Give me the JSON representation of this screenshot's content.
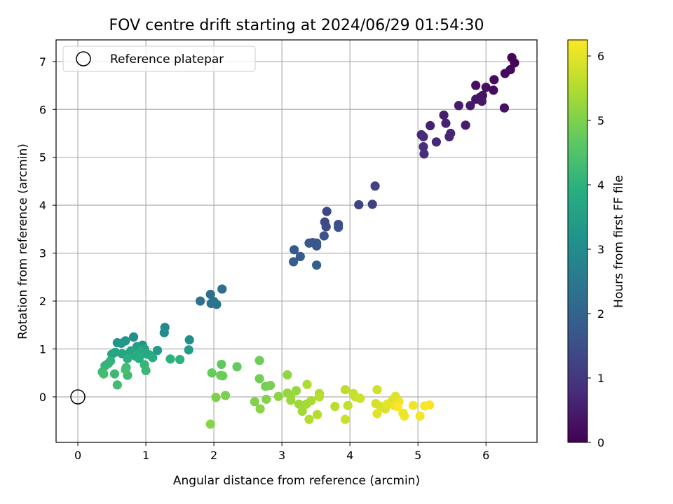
{
  "chart_data": {
    "type": "scatter",
    "title": "FOV centre drift starting at 2024/06/29 01:54:30",
    "xlabel": "Angular distance from reference (arcmin)",
    "ylabel": "Rotation from reference (arcmin)",
    "xlim": [
      -0.32,
      6.75
    ],
    "ylim": [
      -0.95,
      7.45
    ],
    "xticks": [
      0,
      1,
      2,
      3,
      4,
      5,
      6
    ],
    "yticks": [
      0,
      1,
      2,
      3,
      4,
      5,
      6,
      7
    ],
    "grid": true,
    "legend": {
      "placement": "upper-left",
      "entries": [
        "Reference platepar"
      ]
    },
    "colorbar": {
      "label": "Hours from first FF file",
      "colormap": "viridis",
      "range": [
        0,
        6.25
      ],
      "ticks": [
        0,
        1,
        2,
        3,
        4,
        5,
        6
      ]
    },
    "reference_point": {
      "x": 0,
      "y": 0
    },
    "series": [
      {
        "columns": [
          "x_arcmin",
          "y_arcmin",
          "hours"
        ],
        "points": [
          [
            6.38,
            7.08,
            0.05
          ],
          [
            6.42,
            6.97,
            0.08
          ],
          [
            6.36,
            6.83,
            0.11
          ],
          [
            6.28,
            6.75,
            0.14
          ],
          [
            6.12,
            6.62,
            0.17
          ],
          [
            6.11,
            6.4,
            0.2
          ],
          [
            6.0,
            6.46,
            0.23
          ],
          [
            5.85,
            6.5,
            0.26
          ],
          [
            6.27,
            6.03,
            0.29
          ],
          [
            5.95,
            6.29,
            0.32
          ],
          [
            5.91,
            6.25,
            0.35
          ],
          [
            5.85,
            6.21,
            0.38
          ],
          [
            5.94,
            6.17,
            0.41
          ],
          [
            5.77,
            6.08,
            0.45
          ],
          [
            5.6,
            6.08,
            0.48
          ],
          [
            5.7,
            5.67,
            0.51
          ],
          [
            5.38,
            5.88,
            0.55
          ],
          [
            5.41,
            5.71,
            0.58
          ],
          [
            5.18,
            5.66,
            0.61
          ],
          [
            5.48,
            5.5,
            0.64
          ],
          [
            5.46,
            5.43,
            0.67
          ],
          [
            5.27,
            5.32,
            0.7
          ],
          [
            5.05,
            5.47,
            0.73
          ],
          [
            5.08,
            5.43,
            0.76
          ],
          [
            5.08,
            5.22,
            0.79
          ],
          [
            5.09,
            5.07,
            0.82
          ],
          [
            4.37,
            4.4,
            1.2
          ],
          [
            4.33,
            4.02,
            1.23
          ],
          [
            4.13,
            4.01,
            1.27
          ],
          [
            3.66,
            3.87,
            1.35
          ],
          [
            3.63,
            3.65,
            1.39
          ],
          [
            3.65,
            3.55,
            1.42
          ],
          [
            3.83,
            3.6,
            1.46
          ],
          [
            3.83,
            3.54,
            1.5
          ],
          [
            3.62,
            3.36,
            1.55
          ],
          [
            3.51,
            3.21,
            1.6
          ],
          [
            3.45,
            3.22,
            1.64
          ],
          [
            3.4,
            3.21,
            1.68
          ],
          [
            3.51,
            3.15,
            1.72
          ],
          [
            3.18,
            3.07,
            1.76
          ],
          [
            3.27,
            2.93,
            1.8
          ],
          [
            3.17,
            2.82,
            1.84
          ],
          [
            3.51,
            2.75,
            1.88
          ],
          [
            2.12,
            2.25,
            2.25
          ],
          [
            1.95,
            2.14,
            2.28
          ],
          [
            1.8,
            2.0,
            2.31
          ],
          [
            2.0,
            1.99,
            2.34
          ],
          [
            1.96,
            1.95,
            2.37
          ],
          [
            2.04,
            1.93,
            2.4
          ],
          [
            1.28,
            1.45,
            2.95
          ],
          [
            1.27,
            1.34,
            3.0
          ],
          [
            1.64,
            1.19,
            3.05
          ],
          [
            0.82,
            1.25,
            3.1
          ],
          [
            0.95,
            1.08,
            3.15
          ],
          [
            0.58,
            1.13,
            3.2
          ],
          [
            0.7,
            1.17,
            3.25
          ],
          [
            0.64,
            1.12,
            3.3
          ],
          [
            0.9,
            1.02,
            3.35
          ],
          [
            1.17,
            0.97,
            3.4
          ],
          [
            1.63,
            0.98,
            3.45
          ],
          [
            0.87,
            1.05,
            3.5
          ],
          [
            0.98,
            1.0,
            3.55
          ],
          [
            0.78,
            0.96,
            3.58
          ],
          [
            0.55,
            0.93,
            3.6
          ],
          [
            0.5,
            0.89,
            3.63
          ],
          [
            0.65,
            0.9,
            3.66
          ],
          [
            0.72,
            0.88,
            3.69
          ],
          [
            0.8,
            0.92,
            3.72
          ],
          [
            0.92,
            0.95,
            3.75
          ],
          [
            1.0,
            0.9,
            3.78
          ],
          [
            1.05,
            0.88,
            3.81
          ],
          [
            0.85,
            0.85,
            3.84
          ],
          [
            0.9,
            0.8,
            3.87
          ],
          [
            1.1,
            0.82,
            3.9
          ],
          [
            0.73,
            0.8,
            3.93
          ],
          [
            1.36,
            0.79,
            3.96
          ],
          [
            1.5,
            0.78,
            3.99
          ],
          [
            0.48,
            0.75,
            4.02
          ],
          [
            0.45,
            0.7,
            4.05
          ],
          [
            0.4,
            0.65,
            4.08
          ],
          [
            0.98,
            0.67,
            4.11
          ],
          [
            0.71,
            0.61,
            4.14
          ],
          [
            1.0,
            0.55,
            4.17
          ],
          [
            0.36,
            0.52,
            4.2
          ],
          [
            0.54,
            0.48,
            4.23
          ],
          [
            0.73,
            0.45,
            4.26
          ],
          [
            0.58,
            0.25,
            4.29
          ],
          [
            0.38,
            0.48,
            4.32
          ],
          [
            0.7,
            0.57,
            4.35
          ],
          [
            2.11,
            0.68,
            4.7
          ],
          [
            2.34,
            0.63,
            4.73
          ],
          [
            1.97,
            0.5,
            4.76
          ],
          [
            2.1,
            0.45,
            4.79
          ],
          [
            2.13,
            0.44,
            4.82
          ],
          [
            2.67,
            0.76,
            4.85
          ],
          [
            2.67,
            0.38,
            4.88
          ],
          [
            2.76,
            0.22,
            4.91
          ],
          [
            2.83,
            0.24,
            4.94
          ],
          [
            2.17,
            0.03,
            4.97
          ],
          [
            2.03,
            -0.01,
            5.0
          ],
          [
            2.6,
            -0.1,
            5.03
          ],
          [
            2.77,
            -0.05,
            5.06
          ],
          [
            1.95,
            -0.57,
            5.09
          ],
          [
            2.68,
            -0.25,
            5.12
          ],
          [
            2.95,
            0.01,
            5.15
          ],
          [
            3.08,
            0.46,
            5.18
          ],
          [
            3.08,
            0.08,
            5.21
          ],
          [
            3.21,
            0.13,
            5.24
          ],
          [
            3.13,
            0.03,
            5.27
          ],
          [
            3.13,
            -0.07,
            5.3
          ],
          [
            3.25,
            -0.15,
            5.33
          ],
          [
            3.3,
            -0.3,
            5.36
          ],
          [
            3.36,
            -0.15,
            5.39
          ],
          [
            3.43,
            -0.08,
            5.42
          ],
          [
            3.55,
            0.07,
            5.45
          ],
          [
            3.37,
            0.26,
            5.48
          ],
          [
            3.4,
            -0.47,
            5.51
          ],
          [
            3.52,
            -0.37,
            5.54
          ],
          [
            3.55,
            0.0,
            5.57
          ],
          [
            3.78,
            -0.2,
            5.6
          ],
          [
            3.93,
            0.15,
            5.63
          ],
          [
            3.97,
            -0.18,
            5.66
          ],
          [
            4.05,
            0.07,
            5.69
          ],
          [
            4.08,
            0.0,
            5.72
          ],
          [
            3.93,
            -0.47,
            5.75
          ],
          [
            4.15,
            -0.03,
            5.78
          ],
          [
            4.4,
            0.15,
            5.81
          ],
          [
            4.38,
            -0.14,
            5.84
          ],
          [
            4.45,
            -0.2,
            5.87
          ],
          [
            4.52,
            -0.25,
            5.9
          ],
          [
            4.63,
            -0.06,
            5.93
          ],
          [
            4.67,
            0.01,
            5.96
          ],
          [
            4.4,
            -0.35,
            5.99
          ],
          [
            4.55,
            -0.15,
            6.02
          ],
          [
            4.65,
            -0.18,
            6.05
          ],
          [
            4.72,
            -0.1,
            6.07
          ],
          [
            4.78,
            -0.34,
            6.09
          ],
          [
            4.8,
            -0.4,
            6.11
          ],
          [
            4.93,
            -0.18,
            6.13
          ],
          [
            5.03,
            -0.4,
            6.15
          ],
          [
            5.1,
            -0.19,
            6.17
          ],
          [
            5.17,
            -0.17,
            6.19
          ],
          [
            4.7,
            -0.2,
            6.21
          ]
        ]
      }
    ]
  }
}
